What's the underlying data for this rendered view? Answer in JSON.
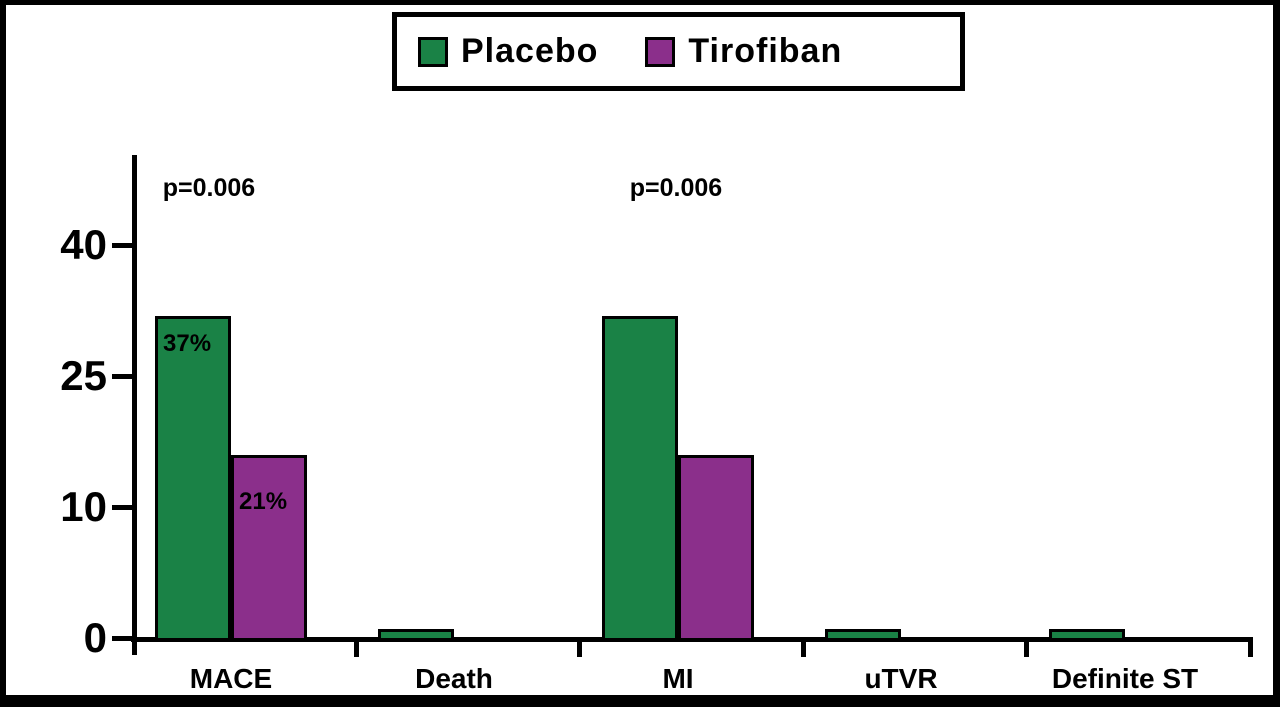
{
  "legend": {
    "position": "top-center",
    "items": [
      {
        "label": "Placebo",
        "color": "#1a8246"
      },
      {
        "label": "Tirofiban",
        "color": "#8b2f8b"
      }
    ]
  },
  "chart_data": {
    "type": "bar",
    "title": "",
    "xlabel": "",
    "ylabel": "",
    "categories": [
      "MACE",
      "Death",
      "MI",
      "uTVR",
      "Definite ST"
    ],
    "series": [
      {
        "name": "Placebo",
        "color": "#1a8246",
        "values": [
          37,
          1,
          37,
          1,
          1
        ],
        "bar_labels": [
          "37%",
          "",
          "",
          "",
          ""
        ]
      },
      {
        "name": "Tirofiban",
        "color": "#8b2f8b",
        "values": [
          21,
          0,
          21,
          0,
          0
        ],
        "bar_labels": [
          "21%",
          "",
          "",
          "",
          ""
        ]
      }
    ],
    "yticks": [
      0,
      10,
      25,
      40
    ],
    "ytick_labels": [
      "0",
      "10",
      "25",
      "40"
    ],
    "ytick_spacing": "equal (non-linear value axis)",
    "ylim": [
      0,
      45
    ],
    "grid": false,
    "legend_position": "top-center",
    "annotations": [
      {
        "text": "p=0.006",
        "category": "MACE"
      },
      {
        "text": "p=0.006",
        "category": "MI"
      }
    ],
    "units": "percent"
  }
}
